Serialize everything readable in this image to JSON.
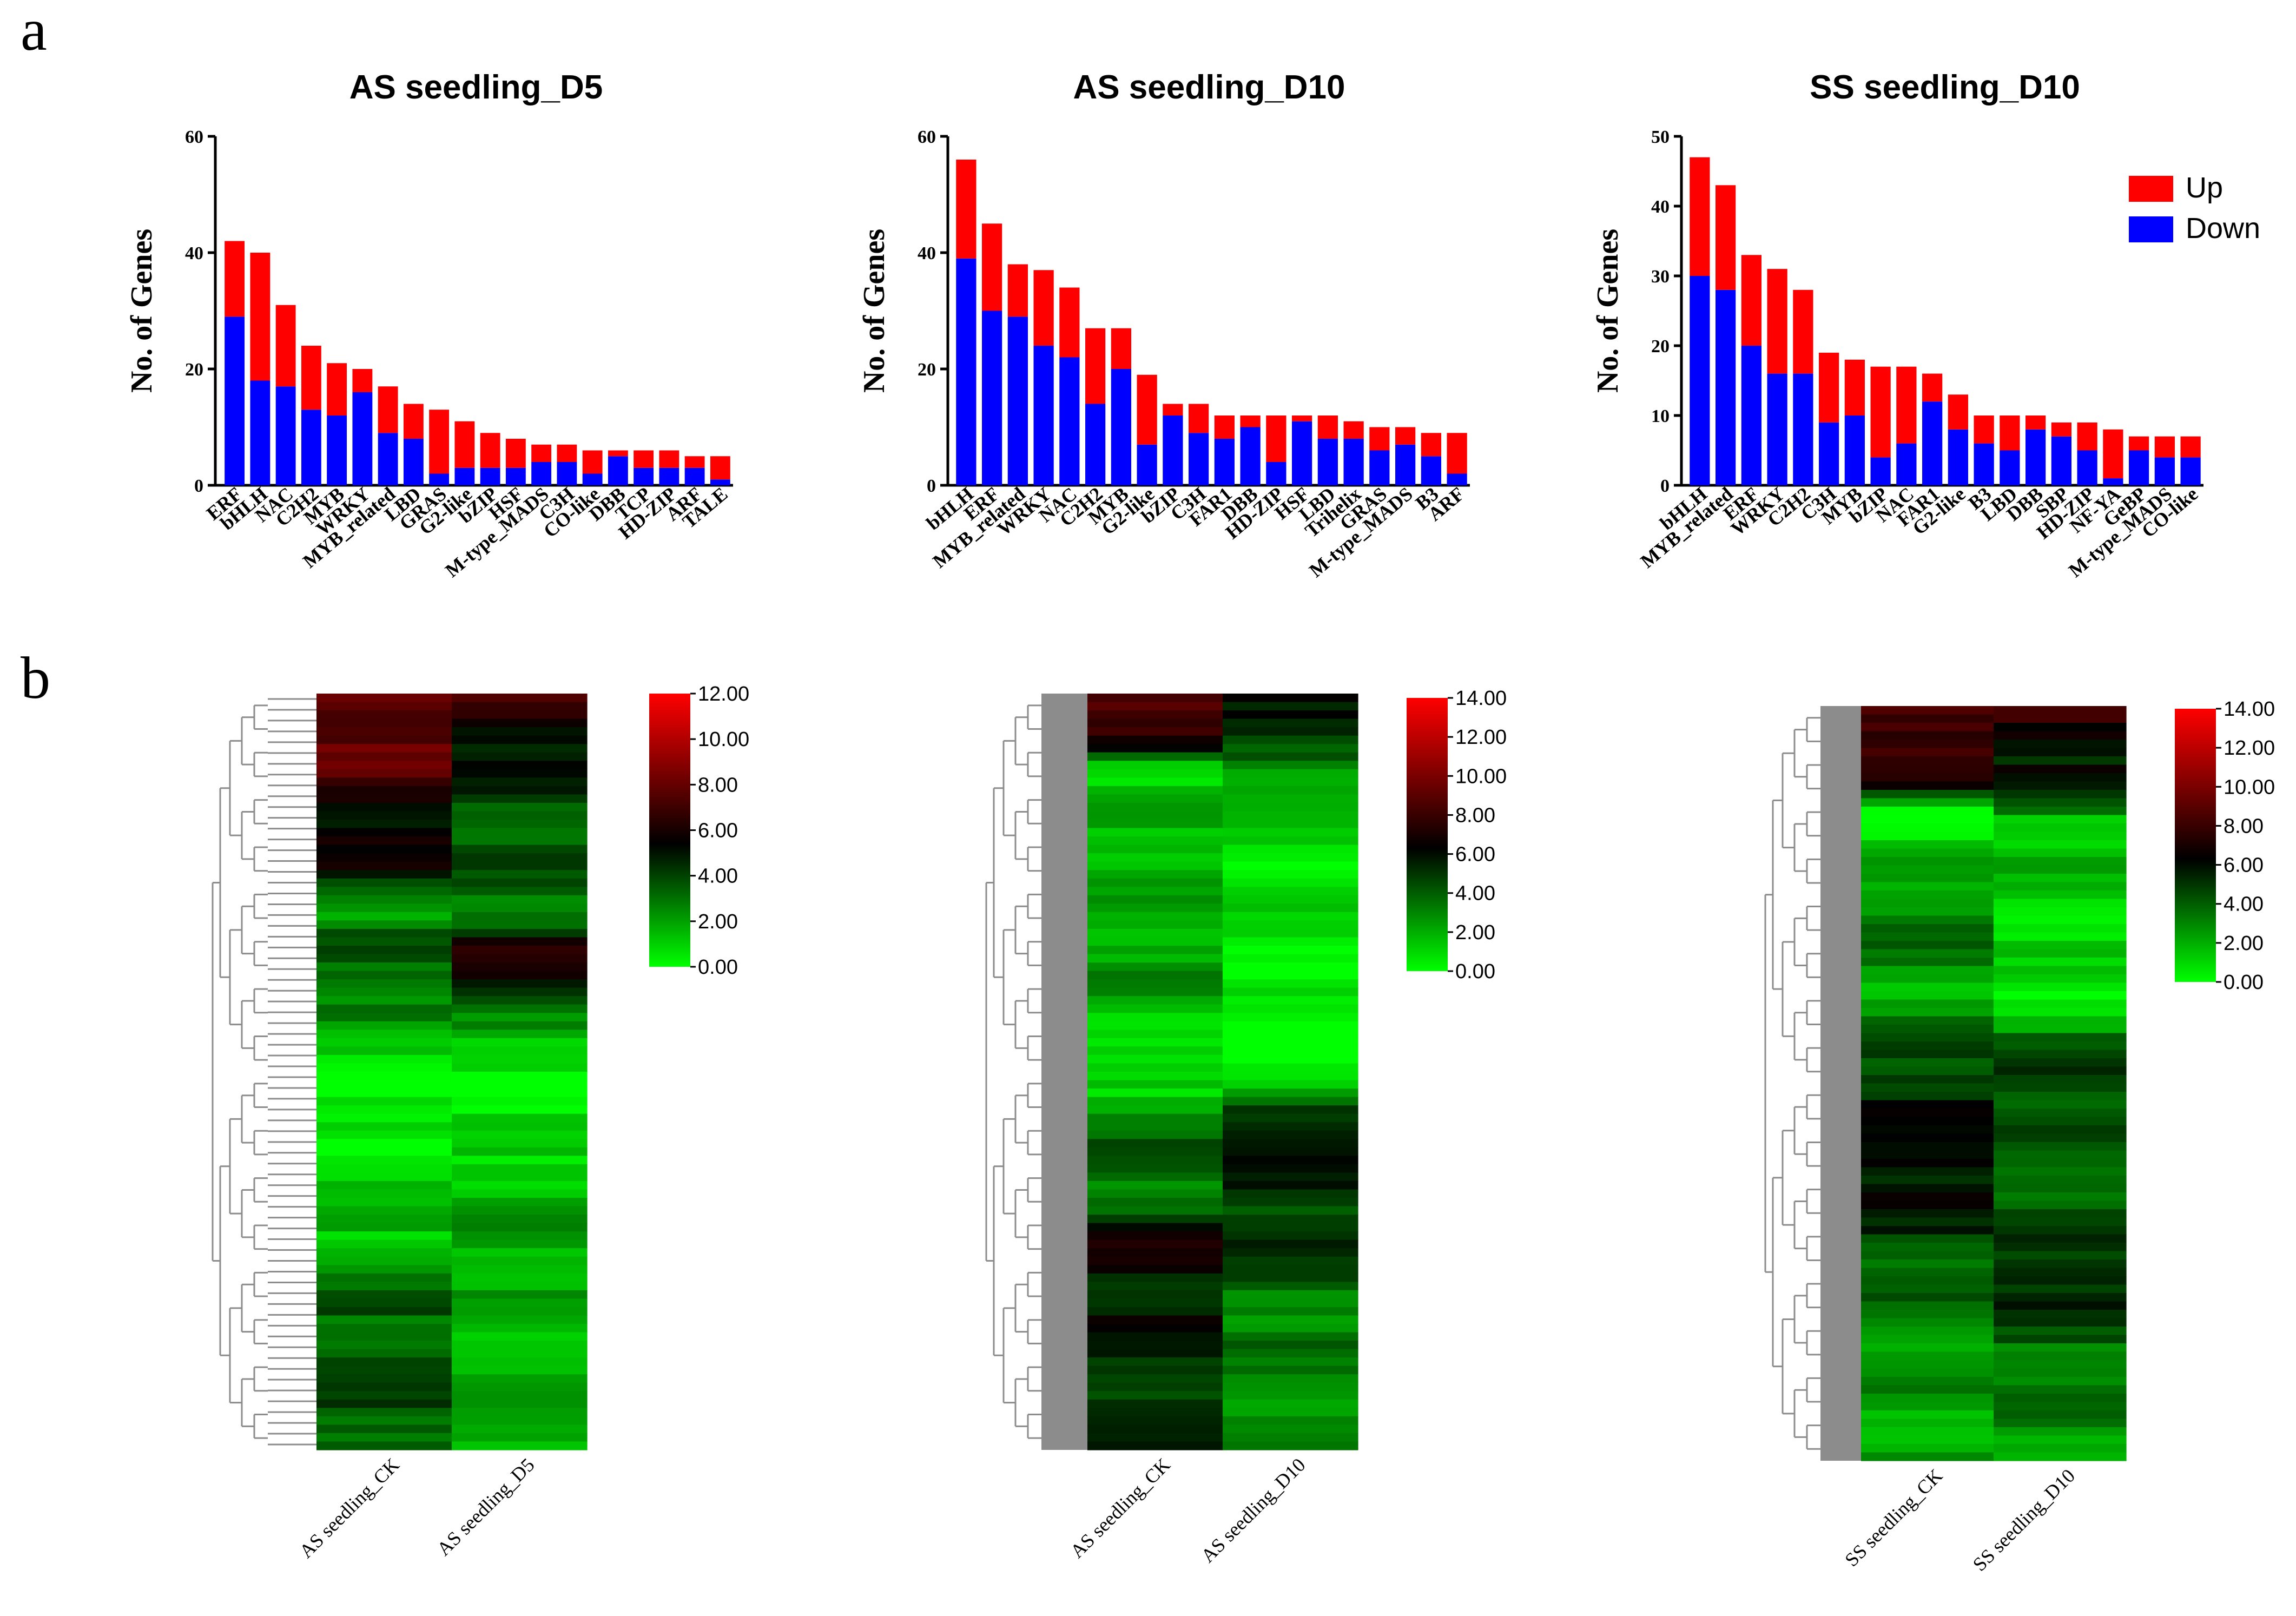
{
  "panel_labels": {
    "a": "a",
    "b": "b"
  },
  "legend": {
    "up": "Up",
    "down": "Down"
  },
  "colors": {
    "up": "#ff0000",
    "down": "#0000ff",
    "dendrogram_fill": "#8c8c8c"
  },
  "chart_data": [
    {
      "type": "bar",
      "stacked": true,
      "title": "AS seedling_D5",
      "ylabel": "No. of Genes",
      "ylim": [
        0,
        60
      ],
      "yticks": [
        0,
        20,
        40,
        60
      ],
      "categories": [
        "ERF",
        "bHLH",
        "NAC",
        "C2H2",
        "MYB",
        "WRKY",
        "MYB_related",
        "LBD",
        "GRAS",
        "G2-like",
        "bZIP",
        "HSF",
        "M-type_MADS",
        "C3H",
        "CO-like",
        "DBB",
        "TCP",
        "HD-ZIP",
        "ARF",
        "TALE"
      ],
      "series": [
        {
          "name": "Down",
          "values": [
            29,
            18,
            17,
            13,
            12,
            16,
            9,
            8,
            2,
            3,
            3,
            3,
            4,
            4,
            2,
            5,
            3,
            3,
            3,
            1
          ]
        },
        {
          "name": "Up",
          "values": [
            13,
            22,
            14,
            11,
            9,
            4,
            8,
            6,
            11,
            8,
            6,
            5,
            3,
            3,
            4,
            1,
            3,
            3,
            2,
            4
          ]
        }
      ]
    },
    {
      "type": "bar",
      "stacked": true,
      "title": "AS seedling_D10",
      "ylabel": "No. of Genes",
      "ylim": [
        0,
        60
      ],
      "yticks": [
        0,
        20,
        40,
        60
      ],
      "categories": [
        "bHLH",
        "ERF",
        "MYB_related",
        "WRKY",
        "NAC",
        "C2H2",
        "MYB",
        "G2-like",
        "bZIP",
        "C3H",
        "FAR1",
        "DBB",
        "HD-ZIP",
        "HSF",
        "LBD",
        "Trihelix",
        "GRAS",
        "M-type_MADS",
        "B3",
        "ARF"
      ],
      "series": [
        {
          "name": "Down",
          "values": [
            39,
            30,
            29,
            24,
            22,
            14,
            20,
            7,
            12,
            9,
            8,
            10,
            4,
            11,
            8,
            8,
            6,
            7,
            5,
            2
          ]
        },
        {
          "name": "Up",
          "values": [
            17,
            15,
            9,
            13,
            12,
            13,
            7,
            12,
            2,
            5,
            4,
            2,
            8,
            1,
            4,
            3,
            4,
            3,
            4,
            7
          ]
        }
      ]
    },
    {
      "type": "bar",
      "stacked": true,
      "title": "SS seedling_D10",
      "ylabel": "No. of Genes",
      "ylim": [
        0,
        50
      ],
      "yticks": [
        0,
        10,
        20,
        30,
        40,
        50
      ],
      "categories": [
        "bHLH",
        "MYB_related",
        "ERF",
        "WRKY",
        "C2H2",
        "C3H",
        "MYB",
        "bZIP",
        "NAC",
        "FAR1",
        "G2-like",
        "B3",
        "LBD",
        "DBB",
        "SBP",
        "HD-ZIP",
        "NF-YA",
        "GeBP",
        "M-type_MADS",
        "CO-like"
      ],
      "series": [
        {
          "name": "Down",
          "values": [
            30,
            28,
            20,
            16,
            16,
            9,
            10,
            4,
            6,
            12,
            8,
            6,
            5,
            8,
            7,
            5,
            1,
            5,
            4,
            4
          ]
        },
        {
          "name": "Up",
          "values": [
            17,
            15,
            13,
            15,
            12,
            10,
            8,
            13,
            11,
            4,
            5,
            4,
            5,
            2,
            2,
            4,
            7,
            2,
            3,
            3
          ]
        }
      ]
    },
    {
      "type": "heatmap",
      "columns": [
        "AS seedling_CK",
        "AS seedling_D5"
      ],
      "colorbar_ticks": [
        "12.00",
        "10.00",
        "8.00",
        "6.00",
        "4.00",
        "2.00",
        "0.00"
      ],
      "colorbar_range": [
        0,
        12
      ]
    },
    {
      "type": "heatmap",
      "columns": [
        "AS seedling_CK",
        "AS seedling_D10"
      ],
      "colorbar_ticks": [
        "14.00",
        "12.00",
        "10.00",
        "8.00",
        "6.00",
        "4.00",
        "2.00",
        "0.00"
      ],
      "colorbar_range": [
        0,
        14
      ]
    },
    {
      "type": "heatmap",
      "columns": [
        "SS seedling_CK",
        "SS seedling_D10"
      ],
      "colorbar_ticks": [
        "14.00",
        "12.00",
        "10.00",
        "8.00",
        "6.00",
        "4.00",
        "2.00",
        "0.00"
      ],
      "colorbar_range": [
        0,
        14
      ]
    }
  ]
}
